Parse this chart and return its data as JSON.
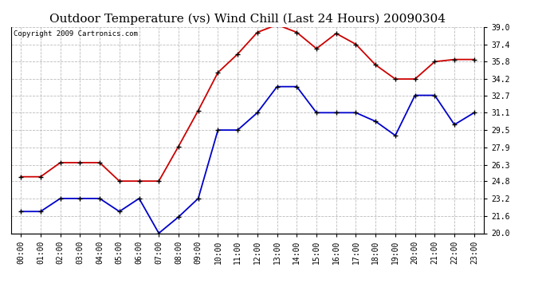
{
  "title": "Outdoor Temperature (vs) Wind Chill (Last 24 Hours) 20090304",
  "copyright_text": "Copyright 2009 Cartronics.com",
  "hours": [
    "00:00",
    "01:00",
    "02:00",
    "03:00",
    "04:00",
    "05:00",
    "06:00",
    "07:00",
    "08:00",
    "09:00",
    "10:00",
    "11:00",
    "12:00",
    "13:00",
    "14:00",
    "15:00",
    "16:00",
    "17:00",
    "18:00",
    "19:00",
    "20:00",
    "21:00",
    "22:00",
    "23:00"
  ],
  "red_data": [
    25.2,
    25.2,
    26.5,
    26.5,
    26.5,
    24.8,
    24.8,
    24.8,
    28.0,
    31.3,
    34.8,
    36.5,
    38.5,
    39.2,
    38.5,
    37.0,
    38.4,
    37.4,
    35.5,
    34.2,
    34.2,
    35.8,
    36.0,
    36.0
  ],
  "blue_data": [
    22.0,
    22.0,
    23.2,
    23.2,
    23.2,
    22.0,
    23.2,
    20.0,
    21.5,
    23.2,
    29.5,
    29.5,
    31.1,
    33.5,
    33.5,
    31.1,
    31.1,
    31.1,
    30.3,
    29.0,
    32.7,
    32.7,
    30.0,
    31.1
  ],
  "red_color": "#cc0000",
  "blue_color": "#0000cc",
  "bg_color": "#ffffff",
  "plot_bg_color": "#ffffff",
  "grid_color": "#bbbbbb",
  "ylim_min": 20.0,
  "ylim_max": 39.0,
  "yticks": [
    20.0,
    21.6,
    23.2,
    24.8,
    26.3,
    27.9,
    29.5,
    31.1,
    32.7,
    34.2,
    35.8,
    37.4,
    39.0
  ],
  "title_fontsize": 11,
  "copyright_fontsize": 6.5,
  "tick_fontsize": 7,
  "marker": "+",
  "markersize": 5,
  "markeredgewidth": 1.0,
  "linewidth": 1.3
}
